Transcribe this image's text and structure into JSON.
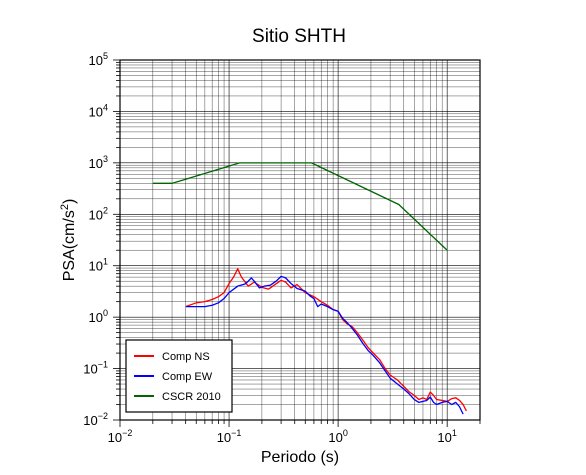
{
  "chart_data": {
    "type": "line",
    "title": "Sitio SHTH",
    "xlabel": "Periodo (s)",
    "ylabel": {
      "base": "PSA(cm/s",
      "sup": "2",
      "end": ")"
    },
    "x_scale": "log",
    "y_scale": "log",
    "xlim": [
      0.01,
      20
    ],
    "ylim": [
      0.01,
      100000
    ],
    "grid": true,
    "legend_position": "bottom-left",
    "x_ticks": [
      {
        "base": "10",
        "exp": "−2"
      },
      {
        "base": "10",
        "exp": "−1"
      },
      {
        "base": "10",
        "exp": "0"
      },
      {
        "base": "10",
        "exp": "1"
      }
    ],
    "y_ticks": [
      {
        "base": "10",
        "exp": "−2"
      },
      {
        "base": "10",
        "exp": "−1"
      },
      {
        "base": "10",
        "exp": "0"
      },
      {
        "base": "10",
        "exp": "1"
      },
      {
        "base": "10",
        "exp": "2"
      },
      {
        "base": "10",
        "exp": "3"
      },
      {
        "base": "10",
        "exp": "4"
      },
      {
        "base": "10",
        "exp": "5"
      }
    ],
    "series": [
      {
        "name": "Comp NS",
        "color": "#ff0000",
        "points": [
          [
            0.04,
            1.6
          ],
          [
            0.05,
            1.9
          ],
          [
            0.06,
            2.0
          ],
          [
            0.07,
            2.2
          ],
          [
            0.08,
            2.5
          ],
          [
            0.09,
            3.0
          ],
          [
            0.1,
            4.5
          ],
          [
            0.11,
            6.0
          ],
          [
            0.12,
            8.7
          ],
          [
            0.13,
            6.0
          ],
          [
            0.15,
            4.0
          ],
          [
            0.17,
            4.8
          ],
          [
            0.2,
            3.8
          ],
          [
            0.23,
            3.5
          ],
          [
            0.26,
            4.2
          ],
          [
            0.3,
            5.2
          ],
          [
            0.33,
            4.8
          ],
          [
            0.37,
            3.7
          ],
          [
            0.42,
            4.3
          ],
          [
            0.5,
            3.0
          ],
          [
            0.6,
            2.5
          ],
          [
            0.7,
            2.0
          ],
          [
            0.8,
            1.7
          ],
          [
            0.9,
            1.4
          ],
          [
            1.0,
            1.3
          ],
          [
            1.1,
            0.9
          ],
          [
            1.2,
            0.75
          ],
          [
            1.35,
            0.65
          ],
          [
            1.5,
            0.5
          ],
          [
            1.7,
            0.35
          ],
          [
            1.9,
            0.25
          ],
          [
            2.1,
            0.2
          ],
          [
            2.4,
            0.15
          ],
          [
            2.7,
            0.1
          ],
          [
            3.0,
            0.075
          ],
          [
            3.5,
            0.06
          ],
          [
            4.0,
            0.045
          ],
          [
            4.5,
            0.035
          ],
          [
            5.0,
            0.03
          ],
          [
            5.5,
            0.025
          ],
          [
            6.0,
            0.027
          ],
          [
            6.5,
            0.025
          ],
          [
            7.0,
            0.035
          ],
          [
            7.5,
            0.03
          ],
          [
            8.0,
            0.025
          ],
          [
            9.0,
            0.024
          ],
          [
            10.0,
            0.023
          ],
          [
            11.0,
            0.026
          ],
          [
            12.0,
            0.027
          ],
          [
            13.0,
            0.024
          ],
          [
            14.0,
            0.02
          ],
          [
            15.0,
            0.015
          ]
        ]
      },
      {
        "name": "Comp EW",
        "color": "#0000ff",
        "points": [
          [
            0.04,
            1.6
          ],
          [
            0.05,
            1.6
          ],
          [
            0.06,
            1.6
          ],
          [
            0.07,
            1.7
          ],
          [
            0.08,
            1.9
          ],
          [
            0.09,
            2.3
          ],
          [
            0.1,
            3.0
          ],
          [
            0.12,
            4.0
          ],
          [
            0.14,
            4.4
          ],
          [
            0.15,
            5.0
          ],
          [
            0.16,
            5.8
          ],
          [
            0.17,
            5.0
          ],
          [
            0.19,
            3.7
          ],
          [
            0.21,
            4.0
          ],
          [
            0.24,
            4.2
          ],
          [
            0.27,
            5.0
          ],
          [
            0.3,
            6.2
          ],
          [
            0.33,
            5.8
          ],
          [
            0.37,
            4.5
          ],
          [
            0.42,
            3.6
          ],
          [
            0.5,
            3.2
          ],
          [
            0.55,
            2.6
          ],
          [
            0.6,
            2.3
          ],
          [
            0.65,
            1.6
          ],
          [
            0.7,
            1.8
          ],
          [
            0.8,
            1.6
          ],
          [
            0.9,
            1.4
          ],
          [
            1.0,
            1.3
          ],
          [
            1.1,
            0.95
          ],
          [
            1.2,
            0.8
          ],
          [
            1.35,
            0.6
          ],
          [
            1.5,
            0.45
          ],
          [
            1.7,
            0.3
          ],
          [
            1.9,
            0.22
          ],
          [
            2.1,
            0.18
          ],
          [
            2.4,
            0.13
          ],
          [
            2.7,
            0.09
          ],
          [
            3.0,
            0.065
          ],
          [
            3.5,
            0.05
          ],
          [
            4.0,
            0.04
          ],
          [
            4.5,
            0.032
          ],
          [
            5.0,
            0.025
          ],
          [
            5.5,
            0.022
          ],
          [
            6.0,
            0.023
          ],
          [
            6.5,
            0.024
          ],
          [
            7.0,
            0.028
          ],
          [
            7.5,
            0.022
          ],
          [
            8.0,
            0.02
          ],
          [
            9.0,
            0.022
          ],
          [
            10.0,
            0.023
          ],
          [
            11.0,
            0.02
          ],
          [
            12.0,
            0.022
          ],
          [
            13.0,
            0.018
          ],
          [
            14.0,
            0.013
          ]
        ]
      },
      {
        "name": "CSCR 2010",
        "color": "#006400",
        "points": [
          [
            0.02,
            400
          ],
          [
            0.03,
            400
          ],
          [
            0.125,
            1000
          ],
          [
            0.57,
            1000
          ],
          [
            3.6,
            155
          ],
          [
            10.0,
            20
          ]
        ]
      }
    ]
  }
}
